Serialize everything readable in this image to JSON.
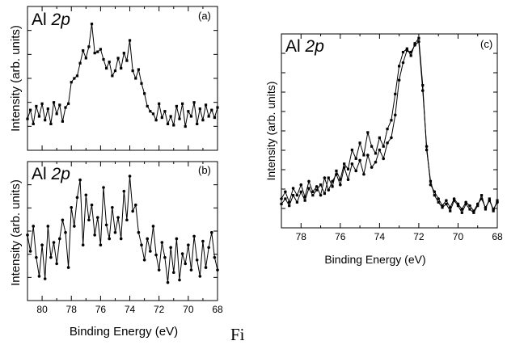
{
  "figure": {
    "caption_fragment": "Fi"
  },
  "chart_data": [
    {
      "id": "a",
      "type": "line",
      "panel_label": "(a)",
      "title_prefix": "Al ",
      "title_italic": "2p",
      "xlabel": "",
      "ylabel": "Intensity (arb. units)",
      "xlim": [
        81,
        68
      ],
      "ylim": [
        0,
        1
      ],
      "x_ticks": [],
      "series": [
        {
          "marker": "square",
          "x": [
            81.0,
            80.8,
            80.6,
            80.4,
            80.2,
            80.0,
            79.8,
            79.6,
            79.4,
            79.2,
            79.0,
            78.8,
            78.6,
            78.4,
            78.2,
            78.0,
            77.8,
            77.6,
            77.4,
            77.2,
            77.0,
            76.8,
            76.6,
            76.4,
            76.2,
            76.0,
            75.8,
            75.6,
            75.4,
            75.2,
            75.0,
            74.8,
            74.6,
            74.4,
            74.2,
            74.0,
            73.8,
            73.6,
            73.4,
            73.2,
            73.0,
            72.8,
            72.6,
            72.4,
            72.2,
            72.0,
            71.8,
            71.6,
            71.4,
            71.2,
            71.0,
            70.8,
            70.6,
            70.4,
            70.2,
            70.0,
            69.8,
            69.6,
            69.4,
            69.2,
            69.0,
            68.8,
            68.6,
            68.4,
            68.2,
            68.0
          ],
          "y": [
            0.18,
            0.25,
            0.14,
            0.28,
            0.2,
            0.3,
            0.17,
            0.26,
            0.14,
            0.31,
            0.22,
            0.29,
            0.16,
            0.27,
            0.3,
            0.47,
            0.5,
            0.52,
            0.62,
            0.72,
            0.66,
            0.75,
            0.93,
            0.7,
            0.71,
            0.73,
            0.65,
            0.58,
            0.63,
            0.52,
            0.56,
            0.66,
            0.58,
            0.7,
            0.64,
            0.8,
            0.56,
            0.5,
            0.57,
            0.46,
            0.38,
            0.28,
            0.24,
            0.22,
            0.17,
            0.3,
            0.19,
            0.24,
            0.14,
            0.2,
            0.13,
            0.28,
            0.18,
            0.3,
            0.12,
            0.24,
            0.2,
            0.31,
            0.14,
            0.26,
            0.17,
            0.29,
            0.2,
            0.25,
            0.19,
            0.27
          ]
        }
      ]
    },
    {
      "id": "b",
      "type": "line",
      "panel_label": "(b)",
      "title_prefix": "Al ",
      "title_italic": "2p",
      "xlabel": "Binding Energy (eV)",
      "ylabel": "Intensity (arb. units)",
      "xlim": [
        81,
        68
      ],
      "ylim": [
        0,
        1
      ],
      "x_ticks": [
        80,
        78,
        76,
        74,
        72,
        70,
        68
      ],
      "x_tick_labels": [
        "80",
        "78",
        "76",
        "74",
        "72",
        "70",
        "68"
      ],
      "series": [
        {
          "marker": "circle",
          "x": [
            81.0,
            80.8,
            80.6,
            80.4,
            80.2,
            80.0,
            79.8,
            79.6,
            79.4,
            79.2,
            79.0,
            78.8,
            78.6,
            78.4,
            78.2,
            78.0,
            77.8,
            77.6,
            77.4,
            77.2,
            77.0,
            76.8,
            76.6,
            76.4,
            76.2,
            76.0,
            75.8,
            75.6,
            75.4,
            75.2,
            75.0,
            74.8,
            74.6,
            74.4,
            74.2,
            74.0,
            73.8,
            73.6,
            73.4,
            73.2,
            73.0,
            72.8,
            72.6,
            72.4,
            72.2,
            72.0,
            71.8,
            71.6,
            71.4,
            71.2,
            71.0,
            70.8,
            70.6,
            70.4,
            70.2,
            70.0,
            69.8,
            69.6,
            69.4,
            69.2,
            69.0,
            68.8,
            68.6,
            68.4,
            68.2,
            68.0
          ],
          "y": [
            0.48,
            0.35,
            0.55,
            0.3,
            0.15,
            0.4,
            0.13,
            0.55,
            0.3,
            0.42,
            0.25,
            0.45,
            0.6,
            0.5,
            0.22,
            0.7,
            0.55,
            0.78,
            0.92,
            0.4,
            0.8,
            0.6,
            0.72,
            0.48,
            0.62,
            0.4,
            0.86,
            0.56,
            0.45,
            0.7,
            0.5,
            0.62,
            0.45,
            0.83,
            0.6,
            0.95,
            0.67,
            0.72,
            0.5,
            0.4,
            0.28,
            0.45,
            0.35,
            0.55,
            0.32,
            0.2,
            0.42,
            0.3,
            0.1,
            0.38,
            0.18,
            0.45,
            0.12,
            0.33,
            0.25,
            0.4,
            0.2,
            0.47,
            0.28,
            0.15,
            0.43,
            0.22,
            0.38,
            0.5,
            0.3,
            0.2
          ]
        }
      ]
    },
    {
      "id": "c",
      "type": "line",
      "panel_label": "(c)",
      "title_prefix": "Al ",
      "title_italic": "2p",
      "xlabel": "Binding Energy (eV)",
      "ylabel": "Intensity (arb. units)",
      "xlim": [
        79,
        68
      ],
      "ylim": [
        0,
        1
      ],
      "x_ticks": [
        78,
        76,
        74,
        72,
        70,
        68
      ],
      "x_tick_labels": [
        "78",
        "76",
        "74",
        "72",
        "70",
        "68"
      ],
      "series": [
        {
          "marker": "circle",
          "x": [
            79.0,
            78.8,
            78.6,
            78.4,
            78.2,
            78.0,
            77.8,
            77.6,
            77.4,
            77.2,
            77.0,
            76.8,
            76.6,
            76.4,
            76.2,
            76.0,
            75.8,
            75.6,
            75.4,
            75.2,
            75.0,
            74.8,
            74.6,
            74.4,
            74.2,
            74.0,
            73.8,
            73.6,
            73.4,
            73.2,
            73.0,
            72.8,
            72.6,
            72.4,
            72.2,
            72.0,
            71.8,
            71.6,
            71.4,
            71.2,
            71.0,
            70.8,
            70.6,
            70.4,
            70.2,
            70.0,
            69.8,
            69.6,
            69.4,
            69.2,
            69.0,
            68.8,
            68.6,
            68.4,
            68.2,
            68.0
          ],
          "y": [
            0.1,
            0.14,
            0.08,
            0.16,
            0.12,
            0.18,
            0.11,
            0.2,
            0.14,
            0.17,
            0.12,
            0.22,
            0.15,
            0.2,
            0.24,
            0.18,
            0.28,
            0.21,
            0.3,
            0.26,
            0.32,
            0.24,
            0.35,
            0.28,
            0.31,
            0.38,
            0.33,
            0.42,
            0.45,
            0.58,
            0.78,
            0.88,
            0.95,
            0.94,
            0.98,
            1.0,
            0.72,
            0.4,
            0.18,
            0.14,
            0.1,
            0.06,
            0.09,
            0.05,
            0.1,
            0.07,
            0.04,
            0.08,
            0.06,
            0.03,
            0.07,
            0.1,
            0.05,
            0.09,
            0.04,
            0.08
          ]
        },
        {
          "marker": "square",
          "x": [
            79.0,
            78.8,
            78.6,
            78.4,
            78.2,
            78.0,
            77.8,
            77.6,
            77.4,
            77.2,
            77.0,
            76.8,
            76.6,
            76.4,
            76.2,
            76.0,
            75.8,
            75.6,
            75.4,
            75.2,
            75.0,
            74.8,
            74.6,
            74.4,
            74.2,
            74.0,
            73.8,
            73.6,
            73.4,
            73.2,
            73.0,
            72.8,
            72.6,
            72.4,
            72.2,
            72.0,
            71.8,
            71.6,
            71.4,
            71.2,
            71.0,
            70.8,
            70.6,
            70.4,
            70.2,
            70.0,
            69.8,
            69.6,
            69.4,
            69.2,
            69.0,
            68.8,
            68.6,
            68.4,
            68.2,
            68.0
          ],
          "y": [
            0.07,
            0.1,
            0.06,
            0.12,
            0.08,
            0.14,
            0.09,
            0.16,
            0.12,
            0.15,
            0.18,
            0.13,
            0.22,
            0.17,
            0.26,
            0.21,
            0.3,
            0.27,
            0.38,
            0.33,
            0.42,
            0.35,
            0.48,
            0.4,
            0.36,
            0.45,
            0.4,
            0.5,
            0.55,
            0.7,
            0.86,
            0.94,
            0.96,
            0.92,
            0.99,
            1.02,
            0.75,
            0.38,
            0.2,
            0.12,
            0.08,
            0.05,
            0.07,
            0.03,
            0.09,
            0.06,
            0.02,
            0.07,
            0.04,
            0.02,
            0.06,
            0.12,
            0.04,
            0.1,
            0.03,
            0.09
          ]
        }
      ]
    }
  ]
}
